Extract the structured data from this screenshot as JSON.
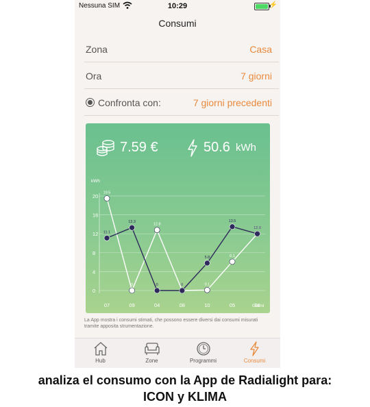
{
  "status": {
    "carrier": "Nessuna SIM",
    "time": "10:29"
  },
  "nav": {
    "title": "Consumi"
  },
  "rows": {
    "zona": {
      "label": "Zona",
      "value": "Casa"
    },
    "ora": {
      "label": "Ora",
      "value": "7 giorni"
    },
    "confronta": {
      "label": "Confronta con:",
      "value": "7 giorni precedenti"
    }
  },
  "summary": {
    "cost": "7.59 €",
    "energy_value": "50.6",
    "energy_unit": "kWh"
  },
  "chart_data": {
    "type": "line",
    "ylabel": "kWh",
    "xlabel": "Giorni",
    "ylim": [
      0,
      20
    ],
    "yticks": [
      "0",
      "4",
      "8",
      "12",
      "16",
      "20"
    ],
    "categories": [
      "07",
      "09",
      "04",
      "08",
      "10",
      "05",
      "06"
    ],
    "series": [
      {
        "values": [
          19.5,
          0,
          12.8,
          0,
          0.1,
          6.1,
          12.0
        ],
        "labels": [
          "19.5",
          "0",
          "12.8",
          "0",
          "0.1",
          "6.1",
          "12.0"
        ],
        "color": "#ffffff"
      },
      {
        "values": [
          11.1,
          13.3,
          0,
          0,
          5.8,
          13.5,
          12.0
        ],
        "labels": [
          "11.1",
          "13.3",
          "0",
          "0",
          "5.8",
          "13.5",
          "12.0"
        ],
        "color": "#2e2a5c"
      }
    ]
  },
  "note": "La App mostra i consumi stimati, che possono essere diversi dai consumi misurati tramite apposita strumentazione.",
  "tabs": [
    {
      "label": "Hub",
      "icon": "home-icon",
      "active": false
    },
    {
      "label": "Zone",
      "icon": "sofa-icon",
      "active": false
    },
    {
      "label": "Programmi",
      "icon": "clock-icon",
      "active": false
    },
    {
      "label": "Consumi",
      "icon": "bolt-icon",
      "active": true
    }
  ],
  "caption": {
    "line1": "analiza el consumo con la App de Radialight para:",
    "line2": "ICON y KLIMA"
  },
  "colors": {
    "accent": "#e98a3c",
    "series_dark": "#2e2a5c",
    "card_top": "#6ac08f"
  }
}
